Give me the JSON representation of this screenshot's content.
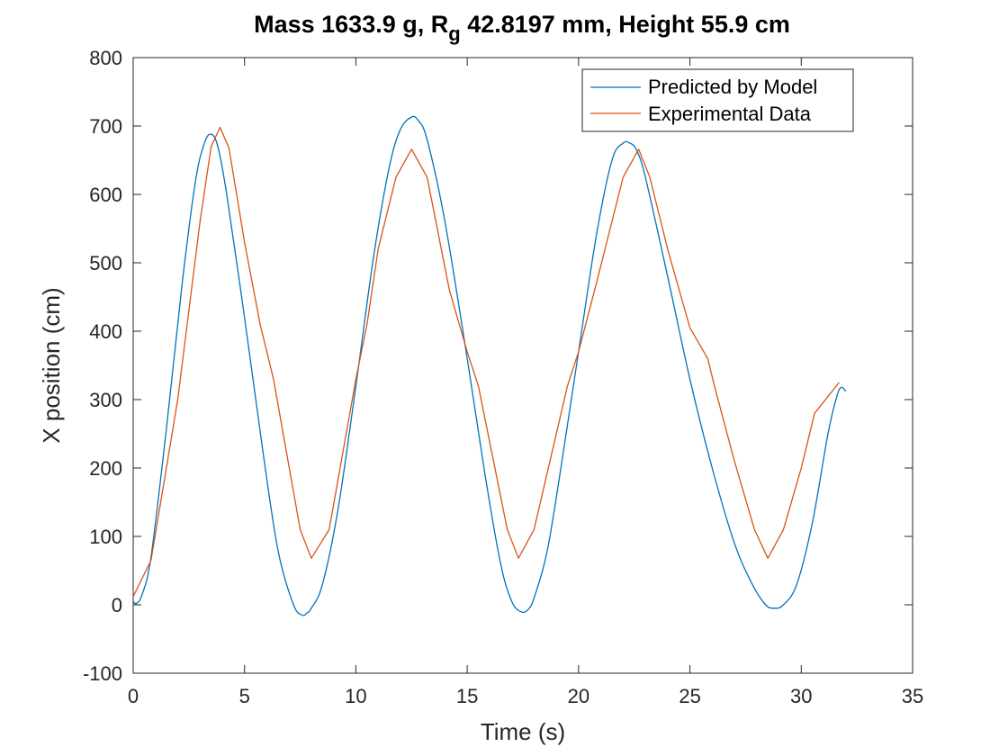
{
  "chart_data": {
    "type": "line",
    "title": {
      "prefix": "Mass 1633.9 g, R",
      "subscript": "g",
      "suffix": " 42.8197 mm,  Height 55.9 cm"
    },
    "xlabel": "Time (s)",
    "ylabel": "X position (cm)",
    "xlim": [
      0,
      35
    ],
    "ylim": [
      -100,
      800
    ],
    "xticks": [
      0,
      5,
      10,
      15,
      20,
      25,
      30,
      35
    ],
    "yticks": [
      -100,
      0,
      100,
      200,
      300,
      400,
      500,
      600,
      700,
      800
    ],
    "grid": false,
    "legend_position": "top-right",
    "series": [
      {
        "name": "Predicted by Model",
        "color": "#0072BD",
        "kind": "smooth",
        "x": [
          0,
          0.15,
          0.4,
          0.8,
          1.5,
          2.2,
          2.8,
          3.2,
          3.5,
          3.8,
          4.2,
          5.0,
          5.8,
          6.5,
          7.2,
          7.6,
          7.8,
          8.0,
          8.5,
          9.2,
          10.0,
          10.8,
          11.5,
          12.0,
          12.5,
          12.8,
          13.2,
          14.0,
          15.0,
          15.8,
          16.5,
          17.0,
          17.4,
          17.7,
          18.0,
          18.6,
          19.3,
          20.0,
          20.8,
          21.5,
          22.0,
          22.3,
          22.6,
          23.0,
          24.0,
          25.0,
          26.0,
          27.0,
          27.8,
          28.4,
          28.8,
          29.2,
          29.8,
          30.5,
          31.2,
          31.6,
          31.8,
          32.0
        ],
        "y": [
          5,
          2,
          15,
          70,
          260,
          470,
          620,
          675,
          688,
          670,
          600,
          420,
          230,
          80,
          0,
          -15,
          -12,
          -5,
          30,
          140,
          320,
          510,
          640,
          695,
          713,
          708,
          680,
          560,
          360,
          190,
          60,
          5,
          -10,
          -8,
          10,
          80,
          220,
          370,
          540,
          650,
          675,
          675,
          665,
          625,
          480,
          330,
          200,
          90,
          30,
          0,
          -5,
          0,
          30,
          120,
          250,
          305,
          318,
          312
        ]
      },
      {
        "name": "Experimental Data",
        "color": "#D95319",
        "kind": "linear",
        "x": [
          0,
          0.8,
          2.0,
          3.0,
          3.5,
          3.9,
          4.3,
          5.0,
          5.7,
          6.3,
          7.5,
          8.0,
          8.8,
          10.0,
          10.5,
          11.0,
          11.8,
          12.5,
          13.2,
          14.2,
          15.0,
          15.5,
          16.8,
          17.3,
          18.0,
          19.5,
          20.0,
          20.8,
          22.0,
          22.7,
          23.2,
          24.0,
          25.0,
          25.8,
          26.1,
          27.0,
          27.9,
          28.5,
          29.2,
          30.0,
          30.6,
          31.7
        ],
        "y": [
          12,
          65,
          300,
          560,
          670,
          698,
          668,
          530,
          410,
          330,
          110,
          68,
          110,
          330,
          410,
          520,
          625,
          666,
          625,
          460,
          370,
          320,
          110,
          68,
          110,
          320,
          370,
          470,
          625,
          666,
          625,
          520,
          405,
          360,
          320,
          210,
          110,
          68,
          110,
          200,
          280,
          325
        ]
      }
    ]
  }
}
